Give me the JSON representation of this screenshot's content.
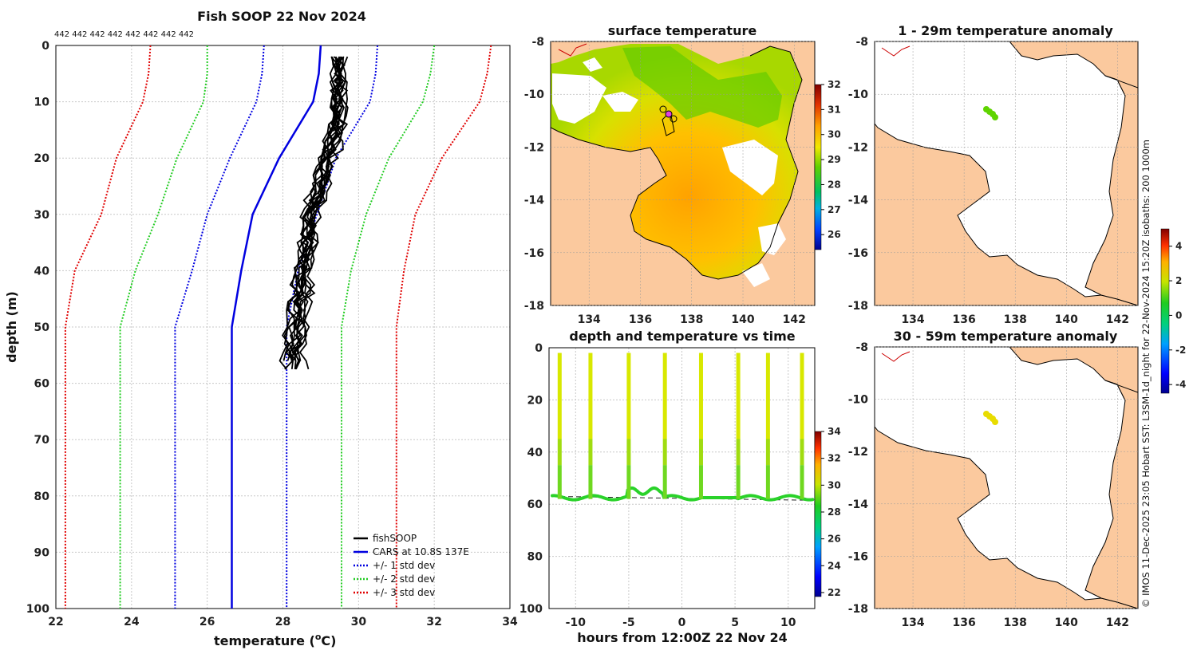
{
  "colors": {
    "land": "#fbc99e",
    "cars": "#0000e0",
    "std1": "#0000e0",
    "std2": "#22cc22",
    "std3": "#e00000",
    "fish": "#000000"
  },
  "main_chart": {
    "type": "line",
    "title": "Fish SOOP 22 Nov 2024",
    "top_note": "442 442 442 442 442 442 442 442",
    "xlabel": "temperature (",
    "xlabel_sup": "o",
    "xlabel_end": "C)",
    "ylabel": "depth (m)",
    "xlim": [
      22,
      34
    ],
    "ylim": [
      0,
      100
    ],
    "xticks": [
      22,
      24,
      26,
      28,
      30,
      32,
      34
    ],
    "yticks": [
      0,
      10,
      20,
      30,
      40,
      50,
      60,
      70,
      80,
      90,
      100
    ],
    "depths": [
      0,
      5,
      10,
      20,
      30,
      40,
      50,
      100
    ],
    "cars": [
      29.0,
      28.95,
      28.8,
      27.9,
      27.2,
      26.9,
      26.65,
      26.65
    ],
    "plus1": [
      30.5,
      30.45,
      30.3,
      29.4,
      28.9,
      28.4,
      28.1,
      28.1
    ],
    "minus1": [
      27.5,
      27.45,
      27.3,
      26.6,
      26.0,
      25.6,
      25.15,
      25.15
    ],
    "plus2": [
      32.0,
      31.9,
      31.7,
      30.8,
      30.2,
      29.8,
      29.55,
      29.55
    ],
    "minus2": [
      26.0,
      26.0,
      25.9,
      25.2,
      24.7,
      24.1,
      23.7,
      23.7
    ],
    "plus3": [
      33.5,
      33.4,
      33.2,
      32.2,
      31.5,
      31.2,
      31.0,
      31.0
    ],
    "minus3": [
      24.5,
      24.45,
      24.3,
      23.6,
      23.2,
      22.5,
      22.25,
      22.25
    ],
    "legend": [
      "fishSOOP",
      "CARS at 10.8S 137E",
      "+/- 1 std dev",
      "+/- 2 std dev",
      "+/- 3 std dev"
    ]
  },
  "sst_map": {
    "title": "surface temperature",
    "xticks": [
      134,
      136,
      138,
      140,
      142
    ],
    "yticks": [
      -8,
      -10,
      -12,
      -14,
      -16,
      -18
    ],
    "colorbar": {
      "min": 25.4,
      "max": 32,
      "ticks": [
        26,
        27,
        28,
        29,
        30,
        31,
        32
      ]
    }
  },
  "time_chart": {
    "type": "scatter",
    "title": "depth and temperature vs time",
    "xlabel": "hours from 12:00Z 22 Nov 24",
    "xlim": [
      -12.5,
      12.5
    ],
    "ylim": [
      0,
      100
    ],
    "xticks": [
      -10,
      -5,
      0,
      5,
      10
    ],
    "yticks": [
      0,
      20,
      40,
      60,
      80,
      100
    ],
    "casts": [
      -11.5,
      -8.6,
      -5.0,
      -1.6,
      1.8,
      5.3,
      8.1,
      11.3
    ],
    "colorbar": {
      "min": 21.7,
      "max": 34,
      "ticks": [
        22,
        24,
        26,
        28,
        30,
        32,
        34
      ]
    }
  },
  "anom_map_top": {
    "title": "1 - 29m temperature anomaly",
    "xticks": [
      134,
      136,
      138,
      140,
      142
    ],
    "yticks": [
      -8,
      -10,
      -12,
      -14,
      -16,
      -18
    ]
  },
  "anom_map_bottom": {
    "title": "30 - 59m temperature anomaly",
    "xticks": [
      134,
      136,
      138,
      140,
      142
    ],
    "yticks": [
      -8,
      -10,
      -12,
      -14,
      -16,
      -18
    ]
  },
  "anom_colorbar": {
    "min": -4.5,
    "max": 5,
    "ticks": [
      -4,
      -2,
      0,
      2,
      4
    ]
  },
  "side_note": "© IMOS 11-Dec-2025 23:05 Hobart SST: L3SM-1d_night for 22-Nov-2024 15:20Z isobaths: 200  1000m"
}
